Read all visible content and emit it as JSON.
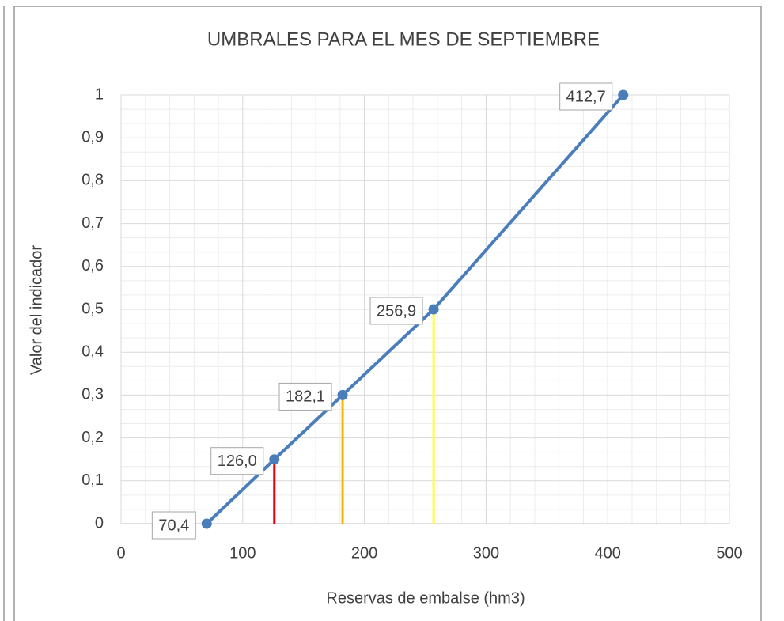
{
  "chart_data": {
    "type": "scatter",
    "title": "UMBRALES PARA EL MES DE SEPTIEMBRE",
    "x_label": "Reservas de embalse (hm3)",
    "y_label": "Valor del indicador",
    "series": [
      {
        "name": "Umbrales",
        "color": "#4a7ebb",
        "x": [
          70.4,
          126.0,
          182.1,
          256.9,
          412.7
        ],
        "values": [
          0,
          0.15,
          0.3,
          0.5,
          1
        ],
        "value_labels": [
          "70,4",
          "126,0",
          "182,1",
          "256,9",
          "412,7"
        ],
        "drop_line_colors": [
          null,
          "#e8000b",
          "#f5b800",
          "#ffff33",
          null
        ]
      }
    ],
    "xlim": [
      0,
      500
    ],
    "xticks": [
      0,
      100,
      200,
      300,
      400,
      500
    ],
    "ylim": [
      0,
      1
    ],
    "yticks": [
      0,
      {
        "value": 0.1,
        "label": "0,1"
      },
      {
        "value": 0.2,
        "label": "0,2"
      },
      {
        "value": 0.3,
        "label": "0,3"
      },
      {
        "value": 0.4,
        "label": "0,4"
      },
      {
        "value": 0.5,
        "label": "0,5"
      },
      {
        "value": 0.6,
        "label": "0,6"
      },
      {
        "value": 0.7,
        "label": "0,7"
      },
      {
        "value": 0.8,
        "label": "0,8"
      },
      {
        "value": 0.9,
        "label": "0,9"
      },
      1
    ],
    "grid": true,
    "minor_grid": true
  }
}
